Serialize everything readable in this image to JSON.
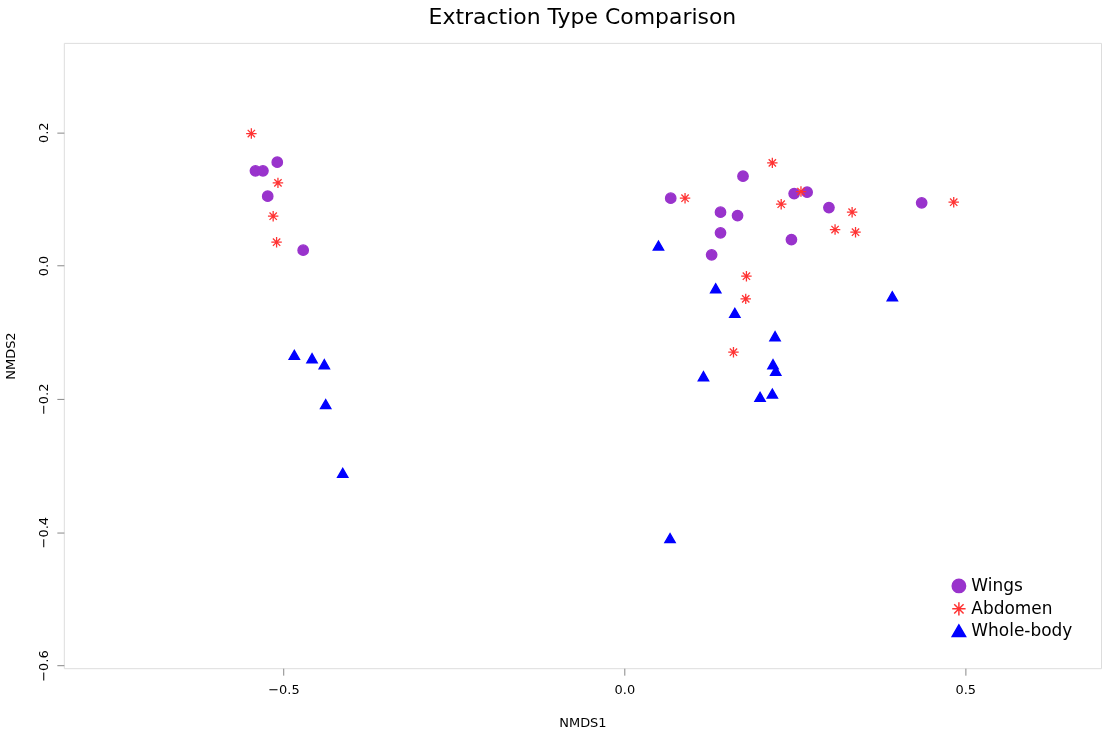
{
  "chart_data": {
    "type": "scatter",
    "title": "Extraction Type Comparison",
    "xlabel": "NMDS1",
    "ylabel": "NMDS2",
    "xlim": [
      -0.822,
      0.699
    ],
    "ylim": [
      -0.604,
      0.334
    ],
    "xticks": [
      -0.5,
      {
        "value": 0,
        "label": "0.0"
      },
      0.5
    ],
    "yticks": [
      -0.6,
      -0.4,
      -0.2,
      {
        "value": 0,
        "label": "0.0"
      },
      0.2
    ],
    "grid": false,
    "legend": "bottom right",
    "series": [
      {
        "name": "Wings",
        "color": "#9933cc",
        "marker": "circle",
        "x": [
          -0.509,
          -0.541,
          -0.53,
          -0.523,
          -0.471,
          0.174,
          0.068,
          0.249,
          0.268,
          0.141,
          0.166,
          0.141,
          0.128,
          0.245,
          0.3,
          0.436
        ],
        "values": [
          0.155,
          0.142,
          0.142,
          0.104,
          0.023,
          0.134,
          0.101,
          0.108,
          0.11,
          0.08,
          0.075,
          0.049,
          0.016,
          0.039,
          0.087,
          0.094
        ]
      },
      {
        "name": "Abdomen",
        "color": "#ff3333",
        "marker": "cross",
        "x": [
          -0.547,
          -0.508,
          -0.515,
          -0.51,
          0.217,
          0.089,
          0.259,
          0.23,
          0.334,
          0.309,
          0.339,
          0.483,
          0.179,
          0.178,
          0.16
        ],
        "values": [
          0.198,
          0.124,
          0.074,
          0.035,
          0.154,
          0.101,
          0.111,
          0.092,
          0.08,
          0.054,
          0.05,
          0.095,
          -0.016,
          -0.05,
          -0.13
        ]
      },
      {
        "name": "Whole-body",
        "color": "#0000ff",
        "marker": "triangle",
        "x": [
          -0.484,
          -0.458,
          -0.44,
          -0.438,
          -0.413,
          0.05,
          0.134,
          0.162,
          0.221,
          0.393,
          0.218,
          0.222,
          0.116,
          0.199,
          0.217,
          0.067
        ],
        "values": [
          -0.134,
          -0.139,
          -0.148,
          -0.208,
          -0.311,
          0.03,
          -0.034,
          -0.071,
          -0.106,
          -0.046,
          -0.148,
          -0.158,
          -0.166,
          -0.197,
          -0.192,
          -0.409
        ]
      }
    ]
  }
}
